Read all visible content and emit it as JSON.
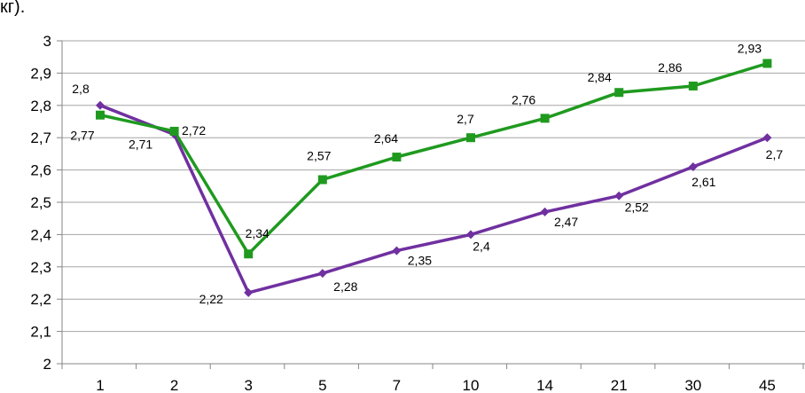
{
  "header_fragment": "кг).",
  "chart_data": {
    "type": "line",
    "categories": [
      "1",
      "2",
      "3",
      "5",
      "7",
      "10",
      "14",
      "21",
      "30",
      "45"
    ],
    "ylim": [
      2,
      3
    ],
    "y_ticks": [
      "2",
      "2,1",
      "2,2",
      "2,3",
      "2,4",
      "2,5",
      "2,6",
      "2,7",
      "2,8",
      "2,9",
      "3"
    ],
    "grid": true,
    "legend": "none",
    "series": [
      {
        "color": "#7030a0",
        "marker": "diamond",
        "values": [
          2.8,
          2.71,
          2.22,
          2.28,
          2.35,
          2.4,
          2.47,
          2.52,
          2.61,
          2.7
        ],
        "labels": [
          "2,8",
          "2,71",
          "2,22",
          "2,28",
          "2,35",
          "2,4",
          "2,47",
          "2,52",
          "2,61",
          "2,7"
        ]
      },
      {
        "color": "#1f9a1f",
        "marker": "square",
        "values": [
          2.77,
          2.72,
          2.34,
          2.57,
          2.64,
          2.7,
          2.76,
          2.84,
          2.86,
          2.93
        ],
        "labels": [
          "2,77",
          "2,72",
          "2,34",
          "2,57",
          "2,64",
          "2,7",
          "2,76",
          "2,84",
          "2,86",
          "2,93"
        ]
      }
    ]
  }
}
